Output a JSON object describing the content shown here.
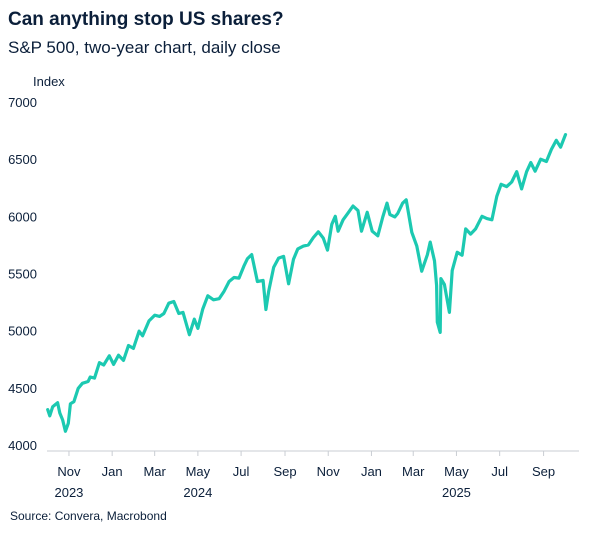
{
  "title": "Can anything stop US shares?",
  "subtitle": "S&P 500, two-year chart, daily close",
  "source": "Source: Convera, Macrobond",
  "colors": {
    "line": "#1cc9b1",
    "text": "#0b1f3a",
    "axis": "#c9cdd3"
  },
  "chart_data": {
    "type": "line",
    "ylabel": "Index",
    "ylim": [
      4000,
      7000
    ],
    "yticks": [
      4000,
      4500,
      5000,
      5500,
      6000,
      6500,
      7000
    ],
    "xlim": [
      "2023-10-01",
      "2025-10-21"
    ],
    "month_ticks": [
      {
        "label": "Nov",
        "date": "2023-11-01"
      },
      {
        "label": "Jan",
        "date": "2024-01-01"
      },
      {
        "label": "Mar",
        "date": "2024-03-01"
      },
      {
        "label": "May",
        "date": "2024-05-01"
      },
      {
        "label": "Jul",
        "date": "2024-07-01"
      },
      {
        "label": "Sep",
        "date": "2024-09-01"
      },
      {
        "label": "Nov",
        "date": "2024-11-01"
      },
      {
        "label": "Jan",
        "date": "2025-01-01"
      },
      {
        "label": "Mar",
        "date": "2025-03-01"
      },
      {
        "label": "May",
        "date": "2025-05-01"
      },
      {
        "label": "Jul",
        "date": "2025-07-01"
      },
      {
        "label": "Sep",
        "date": "2025-09-01"
      }
    ],
    "year_labels": [
      {
        "label": "2023",
        "date": "2023-11-01"
      },
      {
        "label": "2024",
        "date": "2024-05-01"
      },
      {
        "label": "2025",
        "date": "2025-05-01"
      }
    ],
    "grid": false,
    "legend": "none",
    "series": [
      {
        "points": [
          [
            "2023-10-02",
            4310
          ],
          [
            "2023-10-05",
            4255
          ],
          [
            "2023-10-09",
            4335
          ],
          [
            "2023-10-12",
            4350
          ],
          [
            "2023-10-16",
            4370
          ],
          [
            "2023-10-19",
            4280
          ],
          [
            "2023-10-23",
            4220
          ],
          [
            "2023-10-27",
            4120
          ],
          [
            "2023-10-31",
            4190
          ],
          [
            "2023-11-03",
            4360
          ],
          [
            "2023-11-08",
            4380
          ],
          [
            "2023-11-14",
            4495
          ],
          [
            "2023-11-20",
            4540
          ],
          [
            "2023-11-28",
            4555
          ],
          [
            "2023-12-01",
            4595
          ],
          [
            "2023-12-07",
            4585
          ],
          [
            "2023-12-14",
            4720
          ],
          [
            "2023-12-20",
            4700
          ],
          [
            "2023-12-28",
            4780
          ],
          [
            "2024-01-03",
            4705
          ],
          [
            "2024-01-10",
            4785
          ],
          [
            "2024-01-17",
            4740
          ],
          [
            "2024-01-24",
            4870
          ],
          [
            "2024-01-31",
            4845
          ],
          [
            "2024-02-08",
            4995
          ],
          [
            "2024-02-13",
            4955
          ],
          [
            "2024-02-22",
            5085
          ],
          [
            "2024-03-01",
            5135
          ],
          [
            "2024-03-08",
            5125
          ],
          [
            "2024-03-14",
            5150
          ],
          [
            "2024-03-21",
            5240
          ],
          [
            "2024-03-28",
            5255
          ],
          [
            "2024-04-04",
            5150
          ],
          [
            "2024-04-10",
            5160
          ],
          [
            "2024-04-19",
            4965
          ],
          [
            "2024-04-26",
            5100
          ],
          [
            "2024-05-01",
            5020
          ],
          [
            "2024-05-08",
            5190
          ],
          [
            "2024-05-15",
            5305
          ],
          [
            "2024-05-23",
            5270
          ],
          [
            "2024-05-31",
            5280
          ],
          [
            "2024-06-07",
            5345
          ],
          [
            "2024-06-14",
            5430
          ],
          [
            "2024-06-21",
            5465
          ],
          [
            "2024-06-28",
            5460
          ],
          [
            "2024-07-05",
            5565
          ],
          [
            "2024-07-10",
            5630
          ],
          [
            "2024-07-16",
            5665
          ],
          [
            "2024-07-24",
            5430
          ],
          [
            "2024-08-01",
            5440
          ],
          [
            "2024-08-05",
            5185
          ],
          [
            "2024-08-09",
            5345
          ],
          [
            "2024-08-16",
            5555
          ],
          [
            "2024-08-23",
            5635
          ],
          [
            "2024-08-30",
            5650
          ],
          [
            "2024-09-06",
            5410
          ],
          [
            "2024-09-13",
            5625
          ],
          [
            "2024-09-19",
            5715
          ],
          [
            "2024-09-27",
            5740
          ],
          [
            "2024-10-04",
            5750
          ],
          [
            "2024-10-11",
            5815
          ],
          [
            "2024-10-18",
            5865
          ],
          [
            "2024-10-25",
            5810
          ],
          [
            "2024-10-31",
            5705
          ],
          [
            "2024-11-06",
            5930
          ],
          [
            "2024-11-11",
            6000
          ],
          [
            "2024-11-15",
            5870
          ],
          [
            "2024-11-22",
            5970
          ],
          [
            "2024-11-29",
            6030
          ],
          [
            "2024-12-06",
            6090
          ],
          [
            "2024-12-13",
            6050
          ],
          [
            "2024-12-18",
            5870
          ],
          [
            "2024-12-26",
            6035
          ],
          [
            "2025-01-02",
            5870
          ],
          [
            "2025-01-10",
            5830
          ],
          [
            "2025-01-17",
            5995
          ],
          [
            "2025-01-23",
            6115
          ],
          [
            "2025-01-27",
            6015
          ],
          [
            "2025-02-03",
            5995
          ],
          [
            "2025-02-07",
            6025
          ],
          [
            "2025-02-14",
            6115
          ],
          [
            "2025-02-19",
            6145
          ],
          [
            "2025-02-27",
            5860
          ],
          [
            "2025-03-06",
            5740
          ],
          [
            "2025-03-13",
            5520
          ],
          [
            "2025-03-21",
            5665
          ],
          [
            "2025-03-25",
            5775
          ],
          [
            "2025-03-31",
            5610
          ],
          [
            "2025-04-03",
            5395
          ],
          [
            "2025-04-04",
            5075
          ],
          [
            "2025-04-08",
            4985
          ],
          [
            "2025-04-09",
            5455
          ],
          [
            "2025-04-14",
            5405
          ],
          [
            "2025-04-21",
            5160
          ],
          [
            "2025-04-25",
            5525
          ],
          [
            "2025-05-02",
            5685
          ],
          [
            "2025-05-09",
            5660
          ],
          [
            "2025-05-14",
            5890
          ],
          [
            "2025-05-21",
            5845
          ],
          [
            "2025-05-28",
            5890
          ],
          [
            "2025-06-06",
            6000
          ],
          [
            "2025-06-13",
            5980
          ],
          [
            "2025-06-20",
            5970
          ],
          [
            "2025-06-27",
            6175
          ],
          [
            "2025-07-03",
            6280
          ],
          [
            "2025-07-11",
            6260
          ],
          [
            "2025-07-18",
            6300
          ],
          [
            "2025-07-25",
            6390
          ],
          [
            "2025-08-01",
            6240
          ],
          [
            "2025-08-08",
            6390
          ],
          [
            "2025-08-14",
            6470
          ],
          [
            "2025-08-20",
            6395
          ],
          [
            "2025-08-28",
            6500
          ],
          [
            "2025-09-05",
            6480
          ],
          [
            "2025-09-12",
            6585
          ],
          [
            "2025-09-19",
            6665
          ],
          [
            "2025-09-25",
            6605
          ],
          [
            "2025-10-02",
            6715
          ]
        ]
      }
    ]
  }
}
